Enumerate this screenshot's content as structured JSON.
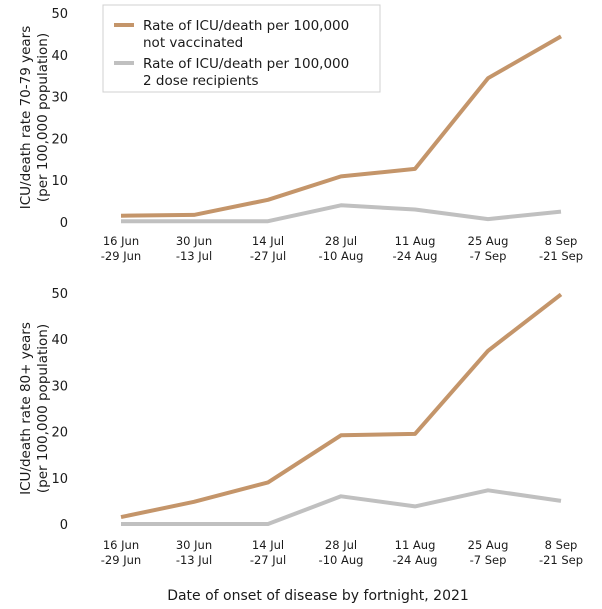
{
  "chart_data": [
    {
      "type": "line",
      "ylabel": [
        "ICU/death rate 70-79 years",
        "(per 100,000 population)"
      ],
      "categories": [
        [
          "16 Jun",
          "-29 Jun"
        ],
        [
          "30 Jun",
          "-13 Jul"
        ],
        [
          "14 Jul",
          "-27 Jul"
        ],
        [
          "28 Jul",
          "-10 Aug"
        ],
        [
          "11 Aug",
          "-24 Aug"
        ],
        [
          "25 Aug",
          "-7 Sep"
        ],
        [
          "8 Sep",
          "-21 Sep"
        ]
      ],
      "yticks": [
        0,
        10,
        20,
        30,
        40,
        50
      ],
      "ylim": [
        0,
        50
      ],
      "grid": false,
      "series": [
        {
          "name": "Rate of ICU/death per 100,000 not vaccinated",
          "legend_lines": [
            "Rate of ICU/death per 100,000",
            "not vaccinated"
          ],
          "color": "#c4956a",
          "values": [
            1.5,
            1.7,
            5.3,
            10.9,
            12.7,
            34.4,
            44.4
          ]
        },
        {
          "name": "Rate of ICU/death per 100,000 2 dose recipients",
          "legend_lines": [
            "Rate of ICU/death per 100,000",
            "2 dose recipients"
          ],
          "color": "#c0c0c0",
          "values": [
            0.2,
            0.2,
            0.2,
            4.0,
            3.0,
            0.7,
            2.5
          ]
        }
      ],
      "legend": "top-left"
    },
    {
      "type": "line",
      "ylabel": [
        "ICU/death rate 80+ years",
        "(per 100,000 population)"
      ],
      "categories": [
        [
          "16 Jun",
          "-29 Jun"
        ],
        [
          "30 Jun",
          "-13 Jul"
        ],
        [
          "14 Jul",
          "-27 Jul"
        ],
        [
          "28 Jul",
          "-10 Aug"
        ],
        [
          "11 Aug",
          "-24 Aug"
        ],
        [
          "25 Aug",
          "-7 Sep"
        ],
        [
          "8 Sep",
          "-21 Sep"
        ]
      ],
      "yticks": [
        0,
        10,
        20,
        30,
        40,
        50
      ],
      "ylim": [
        0,
        50
      ],
      "grid": false,
      "series": [
        {
          "name": "Rate of ICU/death per 100,000 not vaccinated",
          "color": "#c4956a",
          "values": [
            1.5,
            4.8,
            9.0,
            19.2,
            19.5,
            37.5,
            49.7
          ]
        },
        {
          "name": "Rate of ICU/death per 100,000 2 dose recipients",
          "color": "#c0c0c0",
          "values": [
            0.0,
            0.0,
            0.0,
            6.0,
            3.8,
            7.3,
            5.0
          ]
        }
      ]
    }
  ],
  "xlabel": "Date of onset of disease by fortnight, 2021"
}
